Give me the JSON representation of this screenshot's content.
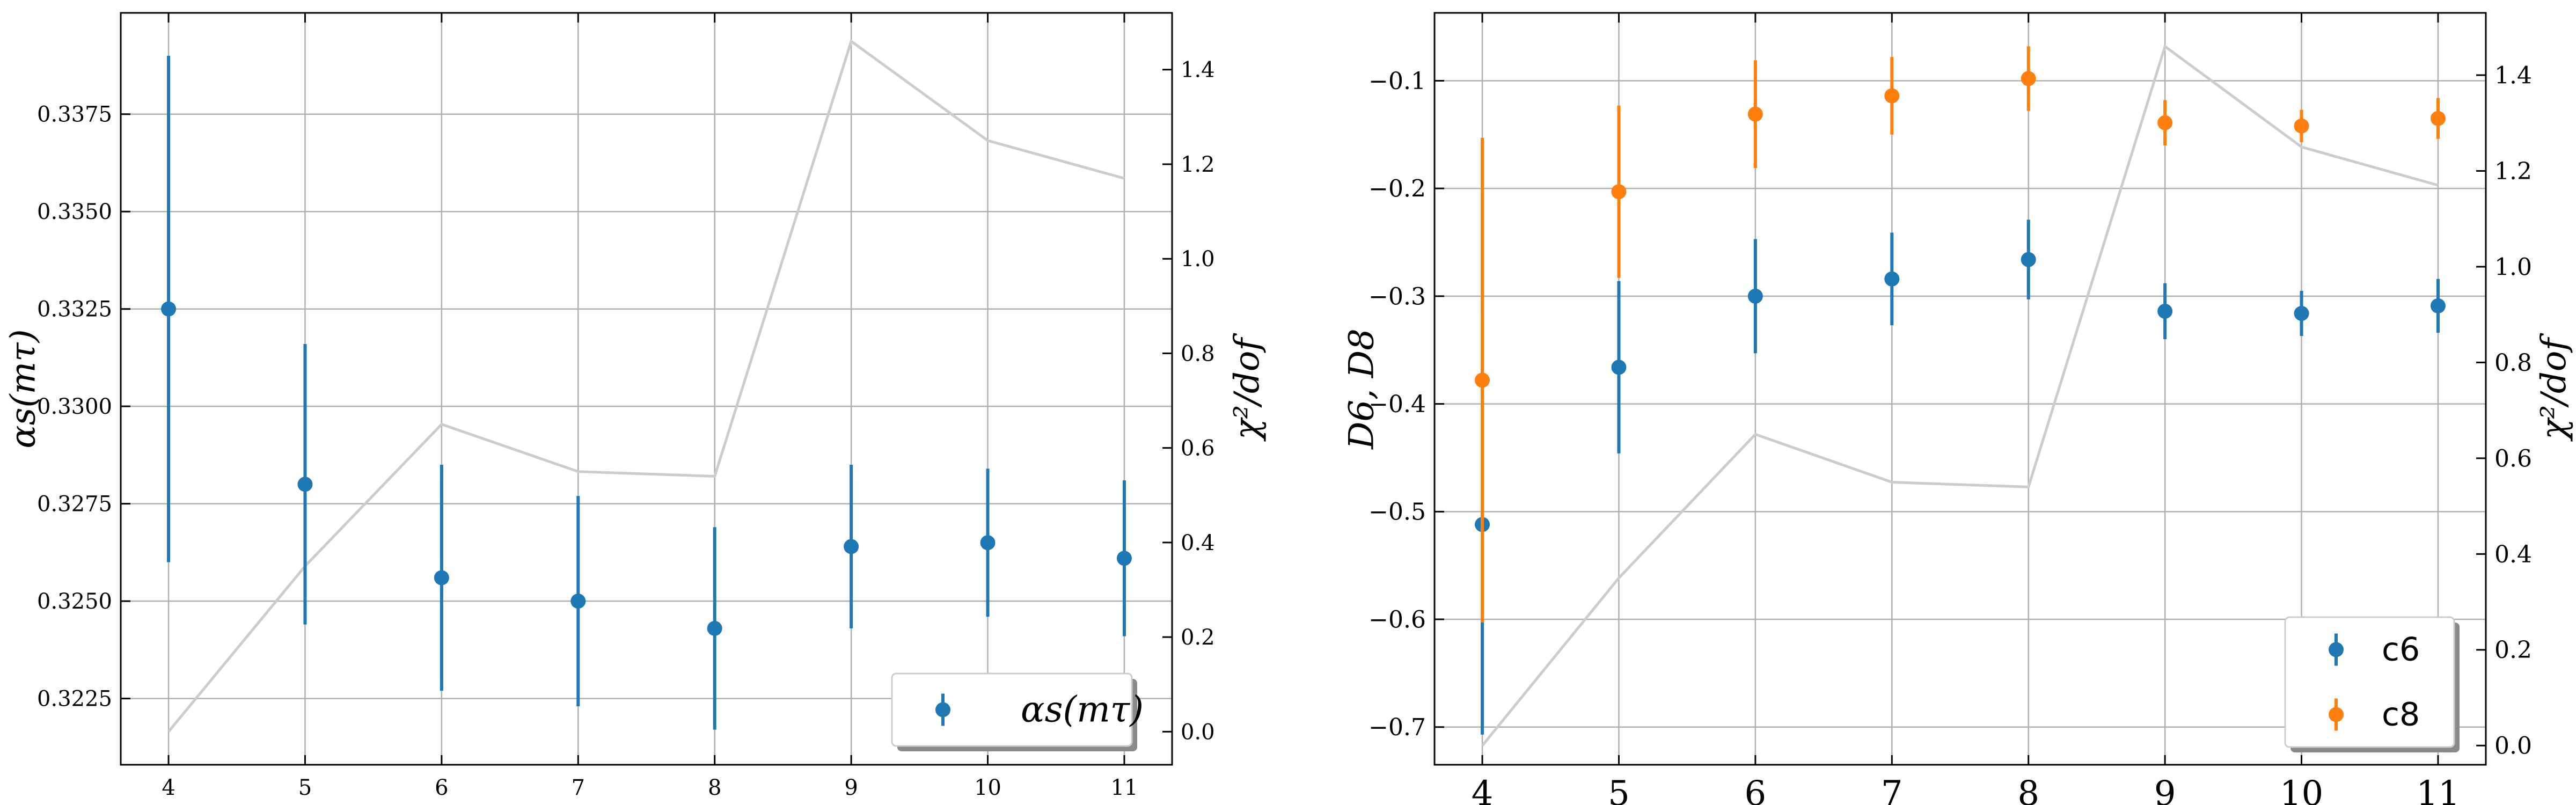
{
  "chart_data": [
    {
      "type": "scatter",
      "title": "",
      "xlabel": "",
      "ylabel": "αs(mτ)",
      "ylabel_right": "χ²/dof",
      "x": [
        4,
        5,
        6,
        7,
        8,
        9,
        10,
        11
      ],
      "xlim": [
        3.65,
        11.35
      ],
      "ylim": [
        0.3208,
        0.3401
      ],
      "ylim_right": [
        -0.07,
        1.52
      ],
      "xticks": [
        "4",
        "5",
        "6",
        "7",
        "8",
        "9",
        "10",
        "11"
      ],
      "yticks": [
        "0.3225",
        "0.3250",
        "0.3275",
        "0.3300",
        "0.3325",
        "0.3350",
        "0.3375"
      ],
      "yticks_right": [
        "0.0",
        "0.2",
        "0.4",
        "0.6",
        "0.8",
        "1.0",
        "1.2",
        "1.4"
      ],
      "grid": true,
      "legend_position": "bottom-right",
      "series": [
        {
          "name": "αs(mτ)",
          "color": "#1f77b4",
          "axis": "left",
          "values": [
            0.3325,
            0.328,
            0.3256,
            0.325,
            0.3243,
            0.3264,
            0.3265,
            0.3261
          ],
          "errors": [
            0.0065,
            0.0036,
            0.0029,
            0.0027,
            0.0026,
            0.0021,
            0.0019,
            0.002
          ]
        },
        {
          "name": "",
          "color": "#cccccc",
          "axis": "right",
          "style": "line",
          "values": [
            0.0,
            0.35,
            0.65,
            0.55,
            0.54,
            1.46,
            1.25,
            1.17
          ]
        }
      ]
    },
    {
      "type": "scatter",
      "title": "",
      "xlabel": "",
      "ylabel": "D6, D8",
      "ylabel_right": "χ²/dof",
      "x": [
        4,
        5,
        6,
        7,
        8,
        9,
        10,
        11
      ],
      "xlim": [
        3.65,
        11.35
      ],
      "ylim": [
        -0.735,
        -0.037
      ],
      "ylim_right": [
        -0.04,
        1.53
      ],
      "xticks": [
        "4",
        "5",
        "6",
        "7",
        "8",
        "9",
        "10",
        "11"
      ],
      "yticks": [
        "−0.7",
        "−0.6",
        "−0.5",
        "−0.4",
        "−0.3",
        "−0.2",
        "−0.1"
      ],
      "yticks_right": [
        "0.0",
        "0.2",
        "0.4",
        "0.6",
        "0.8",
        "1.0",
        "1.2",
        "1.4"
      ],
      "grid": true,
      "legend_position": "bottom-right",
      "series": [
        {
          "name": "c6",
          "color": "#1f77b4",
          "axis": "left",
          "values": [
            -0.512,
            -0.366,
            -0.3,
            -0.284,
            -0.266,
            -0.314,
            -0.316,
            -0.309
          ],
          "errors": [
            0.195,
            0.08,
            0.053,
            0.043,
            0.037,
            0.026,
            0.021,
            0.025
          ]
        },
        {
          "name": "c8",
          "color": "#ff7f0e",
          "axis": "left",
          "values": [
            -0.378,
            -0.203,
            -0.131,
            -0.114,
            -0.098,
            -0.139,
            -0.142,
            -0.135
          ],
          "errors": [
            0.225,
            0.08,
            0.05,
            0.036,
            0.03,
            0.021,
            0.015,
            0.019
          ]
        },
        {
          "name": "",
          "color": "#cccccc",
          "axis": "right",
          "style": "line",
          "values": [
            0.0,
            0.35,
            0.65,
            0.55,
            0.54,
            1.46,
            1.25,
            1.17
          ]
        }
      ]
    }
  ]
}
